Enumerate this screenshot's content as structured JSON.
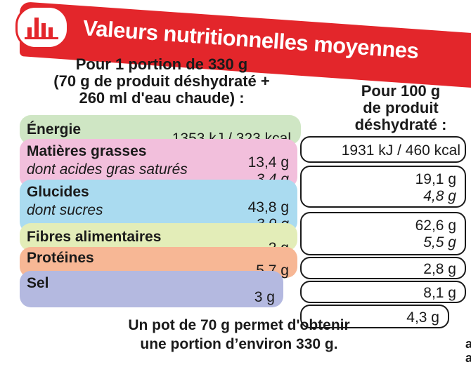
{
  "banner": {
    "title": "Valeurs nutritionnelles moyennes",
    "logo_icon": "bar-chart-icon"
  },
  "headers": {
    "portion": [
      "Pour 1 portion de 330 g",
      "(70 g de produit déshydraté +",
      "260 ml d'eau chaude) :"
    ],
    "per100": [
      "Pour 100 g",
      "de produit",
      "déshydraté :"
    ]
  },
  "rows": [
    {
      "label": "Énergie",
      "portion": "1353 kJ / 323 kcal",
      "per100": "1931 kJ / 460 kcal",
      "color": "#cfe6c4"
    },
    {
      "label": "Matières grasses",
      "portion": "13,4 g",
      "per100": "19,1 g",
      "sub_label": "dont acides gras saturés",
      "sub_portion": "3,4 g",
      "sub_per100": "4,8 g",
      "color": "#f2bfdc"
    },
    {
      "label": "Glucides",
      "portion": "43,8 g",
      "per100": "62,6 g",
      "sub_label": "dont sucres",
      "sub_portion": "3,9 g",
      "sub_per100": "5,5 g",
      "color": "#aadbf0"
    },
    {
      "label": "Fibres alimentaires",
      "portion": "2 g",
      "per100": "2,8 g",
      "color": "#e3edb8"
    },
    {
      "label": "Protéines",
      "portion": "5,7 g",
      "per100": "8,1 g",
      "color": "#f7b795"
    },
    {
      "label": "Sel",
      "portion": "3 g",
      "per100": "4,3 g",
      "color": "#b4b9e0"
    }
  ],
  "footer": [
    "Un pot de 70 g permet d'obtenir",
    "une portion d’environ 330 g."
  ],
  "edge": [
    "a",
    "a"
  ]
}
